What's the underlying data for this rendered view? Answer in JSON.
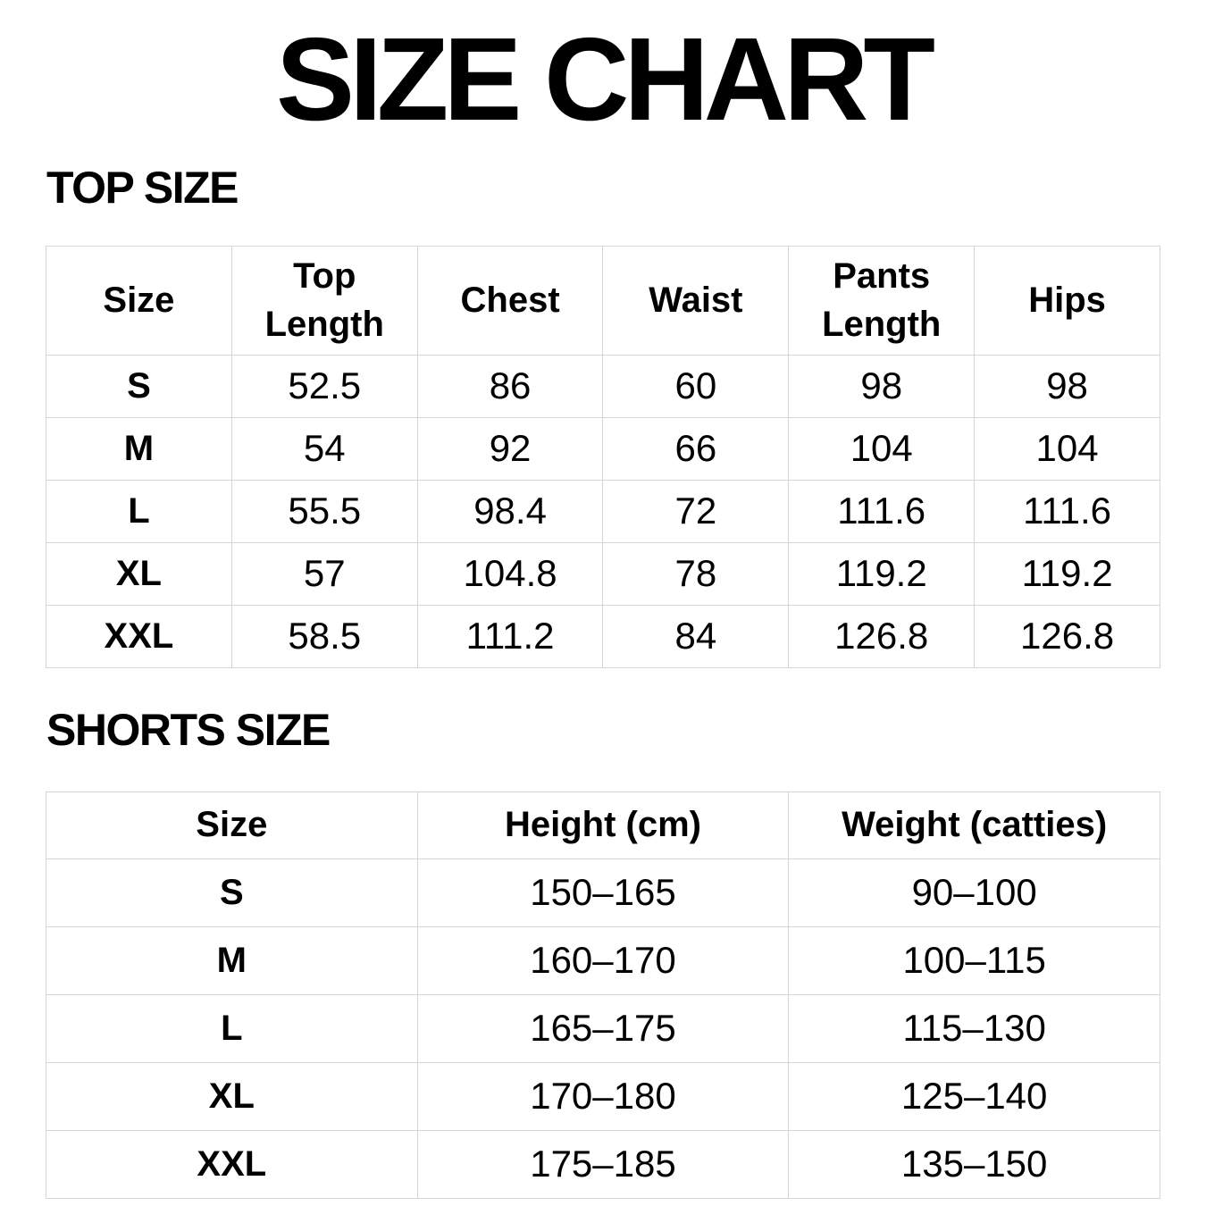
{
  "page": {
    "title": "SIZE CHART"
  },
  "colors": {
    "background": "#ffffff",
    "text": "#000000",
    "table_border": "#d6d6d6"
  },
  "top_section": {
    "heading": "TOP SIZE",
    "columns": [
      "Size",
      "Top Length",
      "Chest",
      "Waist",
      "Pants Length",
      "Hips"
    ],
    "rows": [
      [
        "S",
        "52.5",
        "86",
        "60",
        "98",
        "98"
      ],
      [
        "M",
        "54",
        "92",
        "66",
        "104",
        "104"
      ],
      [
        "L",
        "55.5",
        "98.4",
        "72",
        "111.6",
        "111.6"
      ],
      [
        "XL",
        "57",
        "104.8",
        "78",
        "119.2",
        "119.2"
      ],
      [
        "XXL",
        "58.5",
        "111.2",
        "84",
        "126.8",
        "126.8"
      ]
    ]
  },
  "shorts_section": {
    "heading": "SHORTS SIZE",
    "columns": [
      "Size",
      "Height (cm)",
      "Weight (catties)"
    ],
    "rows": [
      [
        "S",
        "150–165",
        "90–100"
      ],
      [
        "M",
        "160–170",
        "100–115"
      ],
      [
        "L",
        "165–175",
        "115–130"
      ],
      [
        "XL",
        "170–180",
        "125–140"
      ],
      [
        "XXL",
        "175–185",
        "135–150"
      ]
    ]
  }
}
